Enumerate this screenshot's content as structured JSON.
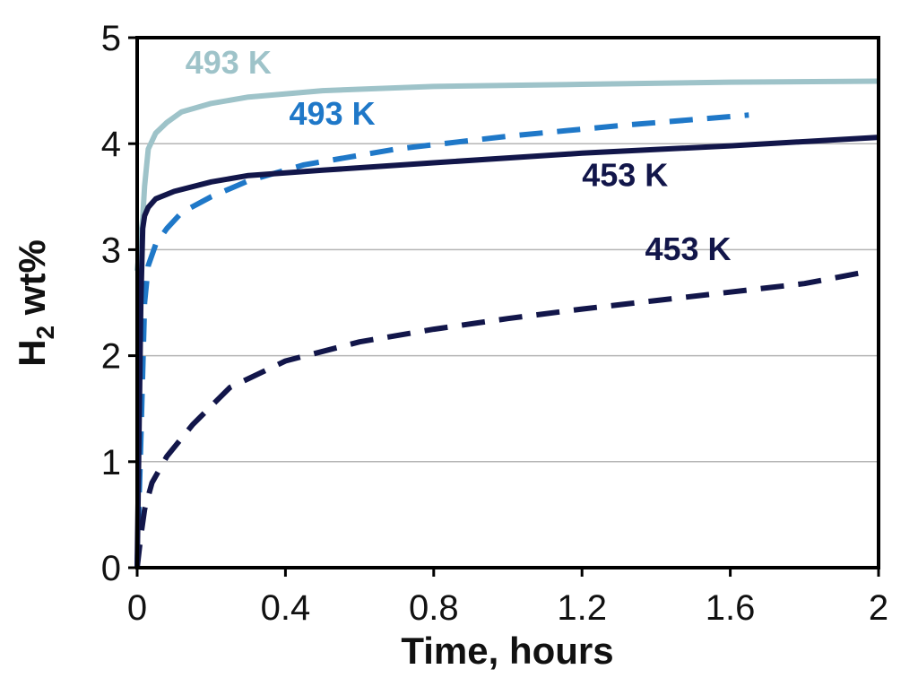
{
  "chart_data": {
    "type": "line",
    "xlabel": "Time, hours",
    "ylabel_main": "H",
    "ylabel_sub": "2",
    "ylabel_rest": " wt%",
    "xlim": [
      0,
      2
    ],
    "ylim": [
      0,
      5
    ],
    "xticks": [
      0,
      0.4,
      0.8,
      1.2,
      1.6,
      2
    ],
    "xtick_labels": [
      "0",
      "0.4",
      "0.8",
      "1.2",
      "1.6",
      "2"
    ],
    "yticks": [
      0,
      1,
      2,
      3,
      4,
      5
    ],
    "ytick_labels": [
      "0",
      "1",
      "2",
      "3",
      "4",
      "5"
    ],
    "grid": "horizontal",
    "series": [
      {
        "label": "493 K",
        "color": "#9ec3c9",
        "dash": false,
        "x": [
          0,
          0.015,
          0.02,
          0.03,
          0.05,
          0.08,
          0.12,
          0.2,
          0.3,
          0.5,
          0.8,
          1.2,
          1.6,
          2.0
        ],
        "y": [
          2.8,
          3.3,
          3.6,
          3.95,
          4.1,
          4.2,
          4.3,
          4.38,
          4.44,
          4.5,
          4.54,
          4.56,
          4.58,
          4.59
        ]
      },
      {
        "label": "493 K",
        "color": "#1f78c8",
        "dash": true,
        "x": [
          0,
          0.01,
          0.02,
          0.03,
          0.05,
          0.08,
          0.12,
          0.2,
          0.3,
          0.45,
          0.7,
          1.0,
          1.3,
          1.65
        ],
        "y": [
          0,
          1.2,
          2.5,
          2.85,
          3.05,
          3.2,
          3.35,
          3.5,
          3.65,
          3.8,
          3.95,
          4.07,
          4.17,
          4.27
        ]
      },
      {
        "label": "453 K",
        "color": "#12164a",
        "dash": false,
        "x": [
          0,
          0.01,
          0.015,
          0.02,
          0.03,
          0.05,
          0.1,
          0.2,
          0.3,
          0.5,
          0.8,
          1.2,
          1.6,
          2.0
        ],
        "y": [
          0,
          2.5,
          3.2,
          3.32,
          3.4,
          3.48,
          3.55,
          3.64,
          3.7,
          3.75,
          3.82,
          3.91,
          3.98,
          4.06
        ]
      },
      {
        "label": "453 K",
        "color": "#12164a",
        "dash": true,
        "x": [
          0,
          0.01,
          0.02,
          0.04,
          0.08,
          0.15,
          0.25,
          0.4,
          0.6,
          0.8,
          1.0,
          1.2,
          1.4,
          1.6,
          1.8,
          1.95
        ],
        "y": [
          0,
          0.3,
          0.55,
          0.8,
          1.05,
          1.35,
          1.7,
          1.95,
          2.13,
          2.25,
          2.35,
          2.44,
          2.52,
          2.6,
          2.68,
          2.78
        ]
      }
    ],
    "annotations": [
      {
        "text": "493 K",
        "color": "#9ec3c9",
        "x": 0.13,
        "y": 4.66
      },
      {
        "text": "493 K",
        "color": "#1f78c8",
        "x": 0.41,
        "y": 4.18
      },
      {
        "text": "453 K",
        "color": "#12164a",
        "x": 1.2,
        "y": 3.6
      },
      {
        "text": "453 K",
        "color": "#12164a",
        "x": 1.37,
        "y": 2.9
      }
    ]
  }
}
